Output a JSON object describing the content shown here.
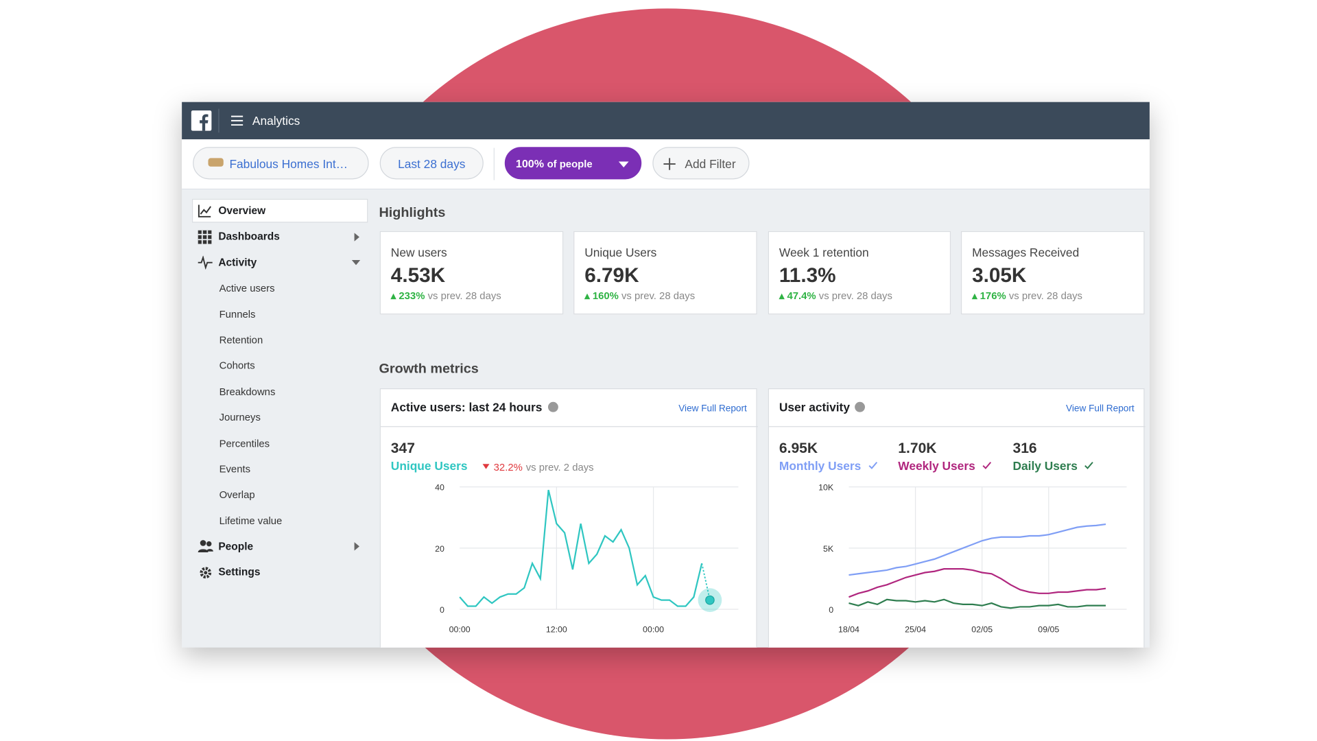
{
  "header": {
    "app": "Analytics"
  },
  "filters": {
    "page": "Fabulous Homes Int…",
    "range": "Last 28 days",
    "audience_percent": "100%",
    "audience_label": "of people",
    "add": "Add Filter"
  },
  "sidebar": {
    "items": [
      {
        "label": "Overview"
      },
      {
        "label": "Dashboards"
      },
      {
        "label": "Activity",
        "children": [
          "Active users",
          "Funnels",
          "Retention",
          "Cohorts",
          "Breakdowns",
          "Journeys",
          "Percentiles",
          "Events",
          "Overlap",
          "Lifetime value"
        ]
      },
      {
        "label": "People"
      },
      {
        "label": "Settings"
      }
    ]
  },
  "highlights": {
    "title": "Highlights",
    "cards": [
      {
        "title": "New users",
        "value": "4.53K",
        "change": "233%",
        "comparison": "vs prev. 28 days"
      },
      {
        "title": "Unique Users",
        "value": "6.79K",
        "change": "160%",
        "comparison": "vs prev. 28 days"
      },
      {
        "title": "Week 1 retention",
        "value": "11.3%",
        "change": "47.4%",
        "comparison": "vs prev. 28 days"
      },
      {
        "title": "Messages Received",
        "value": "3.05K",
        "change": "176%",
        "comparison": "vs prev. 28 days"
      }
    ]
  },
  "growth": {
    "title": "Growth metrics"
  },
  "chart_data": [
    {
      "type": "line",
      "title": "Active users: last 24 hours",
      "link": "View Full Report",
      "total": "347",
      "change": "32.2%",
      "comparison": "vs prev. 2 days",
      "categories": [
        "00:00",
        null,
        null,
        null,
        null,
        null,
        null,
        null,
        null,
        null,
        null,
        null,
        "12:00",
        null,
        null,
        null,
        null,
        null,
        null,
        null,
        null,
        null,
        null,
        null,
        "00:00",
        null,
        null,
        null,
        null,
        null,
        null,
        null
      ],
      "series": [
        {
          "name": "Unique Users",
          "color": "#2fc6c1",
          "values": [
            4,
            1,
            1,
            4,
            2,
            4,
            5,
            5,
            7,
            15,
            10,
            39,
            28,
            25,
            13,
            28,
            15,
            18,
            24,
            22,
            26,
            20,
            8,
            11,
            4,
            3,
            3,
            1,
            1,
            4,
            15,
            3
          ]
        }
      ],
      "ylim": [
        0,
        40
      ],
      "yticks": [
        0,
        20,
        40
      ],
      "grid": true
    },
    {
      "type": "line",
      "title": "User activity",
      "link": "View Full Report",
      "categories": [
        "18/04",
        null,
        null,
        null,
        null,
        null,
        null,
        "25/04",
        null,
        null,
        null,
        null,
        null,
        null,
        "02/05",
        null,
        null,
        null,
        null,
        null,
        null,
        "09/05",
        null,
        null,
        null,
        null,
        null,
        null
      ],
      "series": [
        {
          "name": "Monthly Users",
          "total": "6.95K",
          "color": "#7f9ef5",
          "values": [
            2800,
            2900,
            3000,
            3100,
            3200,
            3400,
            3500,
            3700,
            3900,
            4100,
            4400,
            4700,
            5000,
            5300,
            5600,
            5800,
            5900,
            5900,
            5900,
            6000,
            6000,
            6100,
            6300,
            6500,
            6700,
            6800,
            6850,
            6950
          ]
        },
        {
          "name": "Weekly Users",
          "total": "1.70K",
          "color": "#b0267e",
          "values": [
            1000,
            1300,
            1500,
            1800,
            2000,
            2300,
            2600,
            2800,
            3000,
            3100,
            3300,
            3300,
            3300,
            3200,
            3000,
            2900,
            2500,
            2000,
            1600,
            1400,
            1300,
            1300,
            1400,
            1400,
            1500,
            1600,
            1600,
            1700
          ]
        },
        {
          "name": "Daily Users",
          "total": "316",
          "color": "#2e7d4f",
          "values": [
            500,
            300,
            600,
            400,
            800,
            700,
            700,
            600,
            700,
            600,
            800,
            500,
            400,
            400,
            300,
            500,
            200,
            100,
            200,
            200,
            300,
            300,
            400,
            200,
            200,
            300,
            300,
            300
          ]
        }
      ],
      "ylim": [
        0,
        10000
      ],
      "yticks": [
        0,
        {
          "value": 5000,
          "label": "5K"
        },
        {
          "value": 10000,
          "label": "10K"
        }
      ],
      "grid": true
    }
  ]
}
